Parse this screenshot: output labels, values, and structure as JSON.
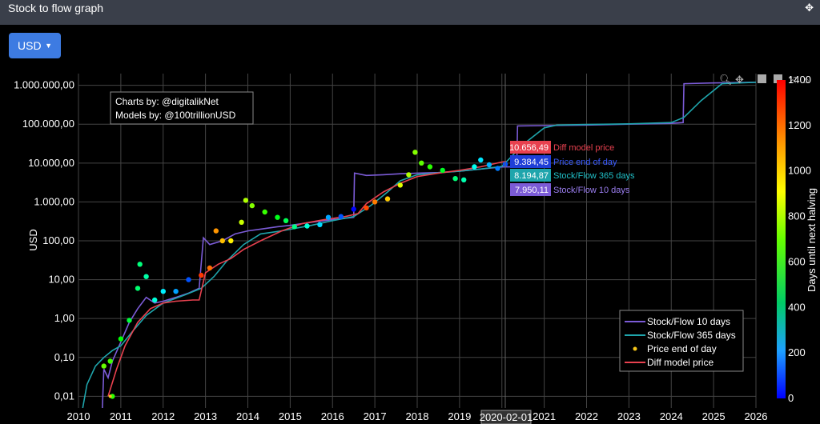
{
  "window": {
    "title": "Stock to flow graph"
  },
  "currency_dropdown": {
    "label": "USD",
    "caret": "▼"
  },
  "credits": {
    "line1": "Charts by: @digitalikNet",
    "line2": "Models by: @100trillionUSD"
  },
  "hover": {
    "date": "2020-02-01",
    "labels": [
      {
        "value": "10.656,49",
        "name": "Diff model price",
        "color": "#e8414f",
        "text_color": "#e8414f"
      },
      {
        "value": "9.384,45",
        "name": "Price end of day",
        "color": "#1f3fd8",
        "text_color": "#3a5bff"
      },
      {
        "value": "8.194,87",
        "name": "Stock/Flow 365 days",
        "color": "#1fa5ac",
        "text_color": "#20c0c8"
      },
      {
        "value": "7.950,11",
        "name": "Stock/Flow 10 days",
        "color": "#7b5bd6",
        "text_color": "#9c7ff2"
      }
    ]
  },
  "colorbar": {
    "title": "Days until next halving",
    "ticks": [
      "0",
      "200",
      "400",
      "600",
      "800",
      "1000",
      "1200",
      "1400"
    ],
    "min": 0,
    "max": 1400
  },
  "toolbar_icons": [
    "zoom-icon",
    "pan-icon",
    "zoom-in-icon",
    "zoom-out-icon",
    "autoscale-icon",
    "reset-icon"
  ],
  "chart_data": {
    "type": "line",
    "ylabel": "USD",
    "y_scale": "log",
    "ylim": [
      0.005,
      2000000
    ],
    "xlim": [
      2010,
      2026
    ],
    "x_ticks": [
      "2010",
      "2011",
      "2012",
      "2013",
      "2014",
      "2015",
      "2016",
      "2017",
      "2018",
      "2019",
      "2020",
      "2021",
      "2022",
      "2023",
      "2024",
      "2025",
      "2026"
    ],
    "y_ticks": [
      {
        "value": 0.01,
        "label": "0,01"
      },
      {
        "value": 0.1,
        "label": "0,10"
      },
      {
        "value": 1,
        "label": "1,00"
      },
      {
        "value": 10,
        "label": "10,00"
      },
      {
        "value": 100,
        "label": "100,00"
      },
      {
        "value": 1000,
        "label": "1.000,00"
      },
      {
        "value": 10000,
        "label": "10.000,00"
      },
      {
        "value": 100000,
        "label": "100.000,00"
      },
      {
        "value": 1000000,
        "label": "1.000.000,00"
      }
    ],
    "legend_position": "bottom-right",
    "series": [
      {
        "name": "Stock/Flow 10 days",
        "color": "#7b5bd6",
        "kind": "line",
        "points": [
          [
            2010.55,
            0.002
          ],
          [
            2010.6,
            0.05
          ],
          [
            2010.7,
            0.03
          ],
          [
            2010.8,
            0.08
          ],
          [
            2011.0,
            0.25
          ],
          [
            2011.2,
            0.8
          ],
          [
            2011.4,
            1.8
          ],
          [
            2011.6,
            3.5
          ],
          [
            2011.8,
            2.5
          ],
          [
            2012.0,
            2.8
          ],
          [
            2012.3,
            3.5
          ],
          [
            2012.6,
            4.5
          ],
          [
            2012.85,
            6
          ],
          [
            2012.95,
            120
          ],
          [
            2013.1,
            80
          ],
          [
            2013.4,
            100
          ],
          [
            2013.7,
            150
          ],
          [
            2014.0,
            180
          ],
          [
            2014.3,
            200
          ],
          [
            2014.7,
            230
          ],
          [
            2015.0,
            250
          ],
          [
            2015.5,
            300
          ],
          [
            2016.0,
            350
          ],
          [
            2016.5,
            400
          ],
          [
            2016.52,
            5500
          ],
          [
            2016.8,
            4800
          ],
          [
            2017.2,
            5000
          ],
          [
            2017.6,
            5300
          ],
          [
            2018.0,
            5500
          ],
          [
            2018.5,
            5700
          ],
          [
            2019.0,
            6200
          ],
          [
            2019.5,
            7000
          ],
          [
            2020.0,
            7950
          ],
          [
            2020.35,
            8000
          ],
          [
            2020.37,
            90000
          ],
          [
            2021.0,
            92000
          ],
          [
            2022.0,
            95000
          ],
          [
            2023.0,
            100000
          ],
          [
            2024.0,
            105000
          ],
          [
            2024.28,
            110000
          ],
          [
            2024.3,
            1100000
          ],
          [
            2025.0,
            1150000
          ],
          [
            2026.0,
            1200000
          ]
        ]
      },
      {
        "name": "Stock/Flow 365 days",
        "color": "#1fa5ac",
        "kind": "line",
        "points": [
          [
            2010.1,
            0.005
          ],
          [
            2010.2,
            0.02
          ],
          [
            2010.4,
            0.06
          ],
          [
            2010.6,
            0.1
          ],
          [
            2010.8,
            0.15
          ],
          [
            2011.0,
            0.2
          ],
          [
            2011.3,
            0.5
          ],
          [
            2011.6,
            1.2
          ],
          [
            2012.0,
            2.5
          ],
          [
            2012.5,
            4
          ],
          [
            2012.9,
            6
          ],
          [
            2013.2,
            12
          ],
          [
            2013.5,
            30
          ],
          [
            2013.9,
            80
          ],
          [
            2014.3,
            150
          ],
          [
            2014.8,
            180
          ],
          [
            2015.5,
            250
          ],
          [
            2016.0,
            330
          ],
          [
            2016.5,
            420
          ],
          [
            2016.9,
            800
          ],
          [
            2017.3,
            1800
          ],
          [
            2017.6,
            3500
          ],
          [
            2018.0,
            5000
          ],
          [
            2018.5,
            5600
          ],
          [
            2019.0,
            6200
          ],
          [
            2019.5,
            7000
          ],
          [
            2020.0,
            8195
          ],
          [
            2020.5,
            30000
          ],
          [
            2021.0,
            80000
          ],
          [
            2021.3,
            95000
          ],
          [
            2022.0,
            98000
          ],
          [
            2023.0,
            102000
          ],
          [
            2024.0,
            110000
          ],
          [
            2024.3,
            150000
          ],
          [
            2024.7,
            400000
          ],
          [
            2025.2,
            1100000
          ],
          [
            2026.0,
            1200000
          ]
        ]
      },
      {
        "name": "Diff model price",
        "color": "#e8414f",
        "kind": "line",
        "points": [
          [
            2010.7,
            0.01
          ],
          [
            2010.9,
            0.05
          ],
          [
            2011.1,
            0.2
          ],
          [
            2011.4,
            0.8
          ],
          [
            2011.7,
            1.8
          ],
          [
            2012.0,
            2.5
          ],
          [
            2012.3,
            2.8
          ],
          [
            2012.7,
            3
          ],
          [
            2012.85,
            3
          ],
          [
            2013.0,
            15
          ],
          [
            2013.3,
            25
          ],
          [
            2013.6,
            35
          ],
          [
            2013.9,
            60
          ],
          [
            2014.3,
            100
          ],
          [
            2014.8,
            180
          ],
          [
            2015.3,
            280
          ],
          [
            2015.8,
            350
          ],
          [
            2016.3,
            420
          ],
          [
            2016.6,
            500
          ],
          [
            2016.8,
            900
          ],
          [
            2017.2,
            1800
          ],
          [
            2017.6,
            3000
          ],
          [
            2018.0,
            4500
          ],
          [
            2018.5,
            5500
          ],
          [
            2019.0,
            6500
          ],
          [
            2019.5,
            8000
          ],
          [
            2020.0,
            10656
          ],
          [
            2020.1,
            11000
          ]
        ]
      },
      {
        "name": "Price end of day",
        "color": "#f5c518",
        "kind": "points",
        "points": [
          [
            2010.6,
            0.06
          ],
          [
            2010.75,
            0.08
          ],
          [
            2010.8,
            0.01
          ],
          [
            2011.0,
            0.3
          ],
          [
            2011.2,
            0.9
          ],
          [
            2011.4,
            6
          ],
          [
            2011.45,
            25
          ],
          [
            2011.6,
            12
          ],
          [
            2011.8,
            3
          ],
          [
            2012.0,
            5
          ],
          [
            2012.3,
            5
          ],
          [
            2012.6,
            10
          ],
          [
            2012.9,
            13
          ],
          [
            2013.1,
            20
          ],
          [
            2013.25,
            180
          ],
          [
            2013.4,
            100
          ],
          [
            2013.6,
            100
          ],
          [
            2013.85,
            300
          ],
          [
            2013.95,
            1100
          ],
          [
            2014.1,
            800
          ],
          [
            2014.4,
            550
          ],
          [
            2014.7,
            400
          ],
          [
            2014.9,
            330
          ],
          [
            2015.1,
            230
          ],
          [
            2015.4,
            240
          ],
          [
            2015.7,
            260
          ],
          [
            2015.9,
            400
          ],
          [
            2016.2,
            420
          ],
          [
            2016.5,
            650
          ],
          [
            2016.8,
            700
          ],
          [
            2017.0,
            1000
          ],
          [
            2017.3,
            1200
          ],
          [
            2017.6,
            2700
          ],
          [
            2017.8,
            5000
          ],
          [
            2017.95,
            19000
          ],
          [
            2018.1,
            10000
          ],
          [
            2018.3,
            8000
          ],
          [
            2018.6,
            6500
          ],
          [
            2018.9,
            4000
          ],
          [
            2019.1,
            3700
          ],
          [
            2019.35,
            8000
          ],
          [
            2019.5,
            12000
          ],
          [
            2019.7,
            9000
          ],
          [
            2019.9,
            7300
          ],
          [
            2020.08,
            9384
          ]
        ]
      }
    ]
  }
}
